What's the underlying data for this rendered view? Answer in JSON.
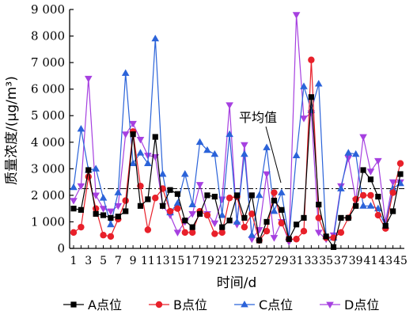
{
  "chart_data": {
    "type": "line",
    "xlabel": "时间/d",
    "ylabel": "质量浓度/(μg/m³)",
    "x": [
      1,
      2,
      3,
      4,
      5,
      6,
      7,
      8,
      9,
      10,
      11,
      12,
      13,
      14,
      15,
      16,
      17,
      18,
      19,
      20,
      21,
      22,
      23,
      24,
      25,
      26,
      27,
      28,
      29,
      30,
      31,
      32,
      33,
      34,
      35,
      36,
      37,
      38,
      39,
      40,
      41,
      42,
      43,
      44,
      45
    ],
    "x_tick_labels": [
      "1",
      "3",
      "5",
      "7",
      "9",
      "11",
      "13",
      "15",
      "17",
      "19",
      "21",
      "23",
      "25",
      "27",
      "29",
      "31",
      "33",
      "35",
      "37",
      "39",
      "41",
      "43",
      "45"
    ],
    "ylim": [
      0,
      9000
    ],
    "y_tick_labels": [
      "0",
      "1 000",
      "2 000",
      "3 000",
      "4 000",
      "5 000",
      "6 000",
      "7 000",
      "8 000",
      "9 000"
    ],
    "y_ticks": [
      0,
      1000,
      2000,
      3000,
      4000,
      5000,
      6000,
      7000,
      8000,
      9000
    ],
    "reference_line": {
      "label": "平均值",
      "value": 2250
    },
    "legend_position": "bottom",
    "series": [
      {
        "name": "A点位",
        "color": "#000000",
        "marker": "square",
        "values": [
          1500,
          1450,
          2950,
          1300,
          1250,
          1150,
          1200,
          1400,
          4300,
          1600,
          1850,
          4200,
          1600,
          2200,
          2050,
          1050,
          800,
          1300,
          2000,
          1950,
          800,
          1050,
          2000,
          1150,
          2000,
          300,
          1000,
          1800,
          1450,
          350,
          900,
          1150,
          5700,
          1650,
          450,
          50,
          1150,
          1150,
          1600,
          2950,
          2600,
          1950,
          850,
          1400,
          2800
        ]
      },
      {
        "name": "B点位",
        "color": "#e8202a",
        "marker": "circle",
        "values": [
          600,
          800,
          2700,
          1500,
          500,
          450,
          1100,
          1800,
          4400,
          2350,
          700,
          1900,
          2250,
          1400,
          1500,
          600,
          600,
          1400,
          1250,
          550,
          600,
          1900,
          1950,
          800,
          1300,
          300,
          650,
          2100,
          950,
          350,
          350,
          650,
          7100,
          1150,
          400,
          400,
          600,
          1150,
          1850,
          2000,
          2000,
          1250,
          750,
          2100,
          3200
        ]
      },
      {
        "name": "C点位",
        "color": "#2b63d9",
        "marker": "triangle",
        "values": [
          2300,
          4500,
          2950,
          3000,
          1900,
          900,
          2100,
          6600,
          3200,
          3600,
          3200,
          7900,
          2800,
          1350,
          1700,
          2800,
          1650,
          4000,
          3700,
          3550,
          1250,
          4300,
          1000,
          3550,
          500,
          2000,
          3800,
          1400,
          2100,
          400,
          3500,
          6100,
          5200,
          6200,
          450,
          400,
          2250,
          3600,
          3550,
          1600,
          1600,
          1500,
          850,
          2250,
          2450
        ]
      },
      {
        "name": "D点位",
        "color": "#a640e0",
        "marker": "triangle-down",
        "values": [
          1800,
          2350,
          6400,
          2000,
          1500,
          1400,
          1600,
          4300,
          4700,
          4100,
          3500,
          3450,
          1600,
          1250,
          600,
          1000,
          1300,
          2400,
          1300,
          950,
          1850,
          5400,
          900,
          3900,
          350,
          700,
          2800,
          400,
          1000,
          250,
          8800,
          4900,
          5100,
          600,
          350,
          500,
          2350,
          3400,
          1800,
          4200,
          2900,
          3300,
          1000,
          2500,
          2500
        ]
      }
    ]
  }
}
